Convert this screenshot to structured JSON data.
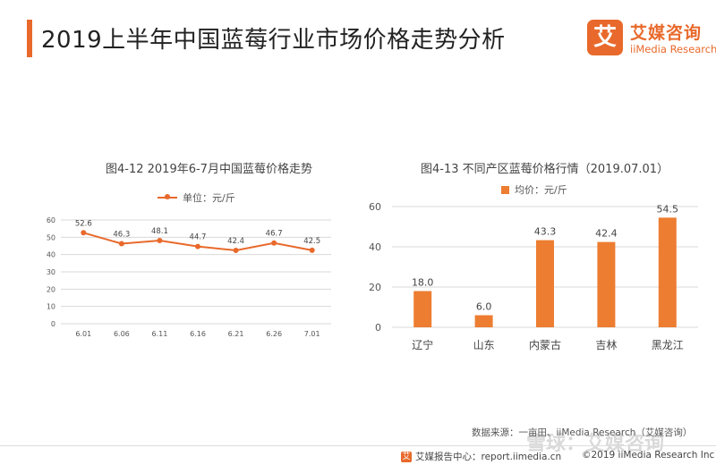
{
  "page": {
    "title": "2019上半年中国蓝莓行业市场价格走势分析",
    "logo_badge": "艾",
    "logo_cn": "艾媒咨询",
    "logo_en": "iiMedia Research",
    "source": "数据来源：一亩田、iiMedia Research（艾媒咨询）",
    "footer_left_icon": "艾",
    "footer_left": "艾媒报告中心：report.iimedia.cn",
    "footer_right": "©2019  iiMedia Research Inc",
    "watermark": "雪球：艾媒咨询"
  },
  "colors": {
    "accent": "#e8692b",
    "bar": "#ed7d31",
    "grid": "#d9d9d9"
  },
  "chart_data": [
    {
      "type": "line",
      "title": "图4-12 2019年6-7月中国蓝莓价格走势",
      "categories": [
        "6.01",
        "6.06",
        "6.11",
        "6.16",
        "6.21",
        "6.26",
        "7.01"
      ],
      "series": [
        {
          "name": "单位：元/斤",
          "values": [
            52.6,
            46.3,
            48.1,
            44.7,
            42.4,
            46.7,
            42.5
          ]
        }
      ],
      "data_labels": [
        "52.6",
        "46.3",
        "48.1",
        "44.7",
        "42.4",
        "46.7",
        "42.5"
      ],
      "ylim": [
        0,
        60
      ],
      "yticks": [
        "0",
        "10",
        "20",
        "30",
        "40",
        "50",
        "60"
      ],
      "grid": true,
      "legend": "top"
    },
    {
      "type": "bar",
      "title": "图4-13 不同产区蓝莓价格行情（2019.07.01）",
      "categories": [
        "辽宁",
        "山东",
        "内蒙古",
        "吉林",
        "黑龙江"
      ],
      "series": [
        {
          "name": "均价：元/斤",
          "values": [
            18.0,
            6.0,
            43.3,
            42.4,
            54.5
          ]
        }
      ],
      "data_labels": [
        "18.0",
        "6.0",
        "43.3",
        "42.4",
        "54.5"
      ],
      "ylim": [
        0,
        60
      ],
      "yticks": [
        "0",
        "20",
        "40",
        "60"
      ],
      "grid": true,
      "legend": "top"
    }
  ]
}
